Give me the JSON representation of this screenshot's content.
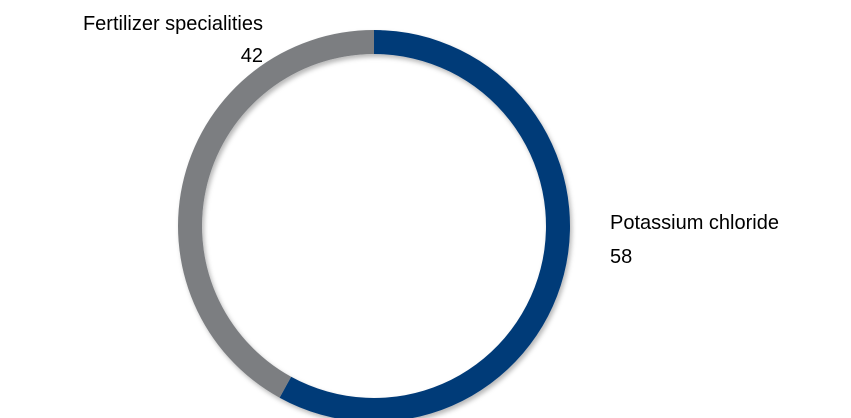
{
  "chart_data": {
    "type": "pie",
    "variant": "donut",
    "start_angle_deg": 0,
    "direction": "clockwise",
    "slices": [
      {
        "label": "Potassium chloride",
        "value": 58,
        "color": "#003a78"
      },
      {
        "label": "Fertilizer specialities",
        "value": 42,
        "color": "#7b7e81"
      }
    ],
    "title": "",
    "legend": "none"
  }
}
